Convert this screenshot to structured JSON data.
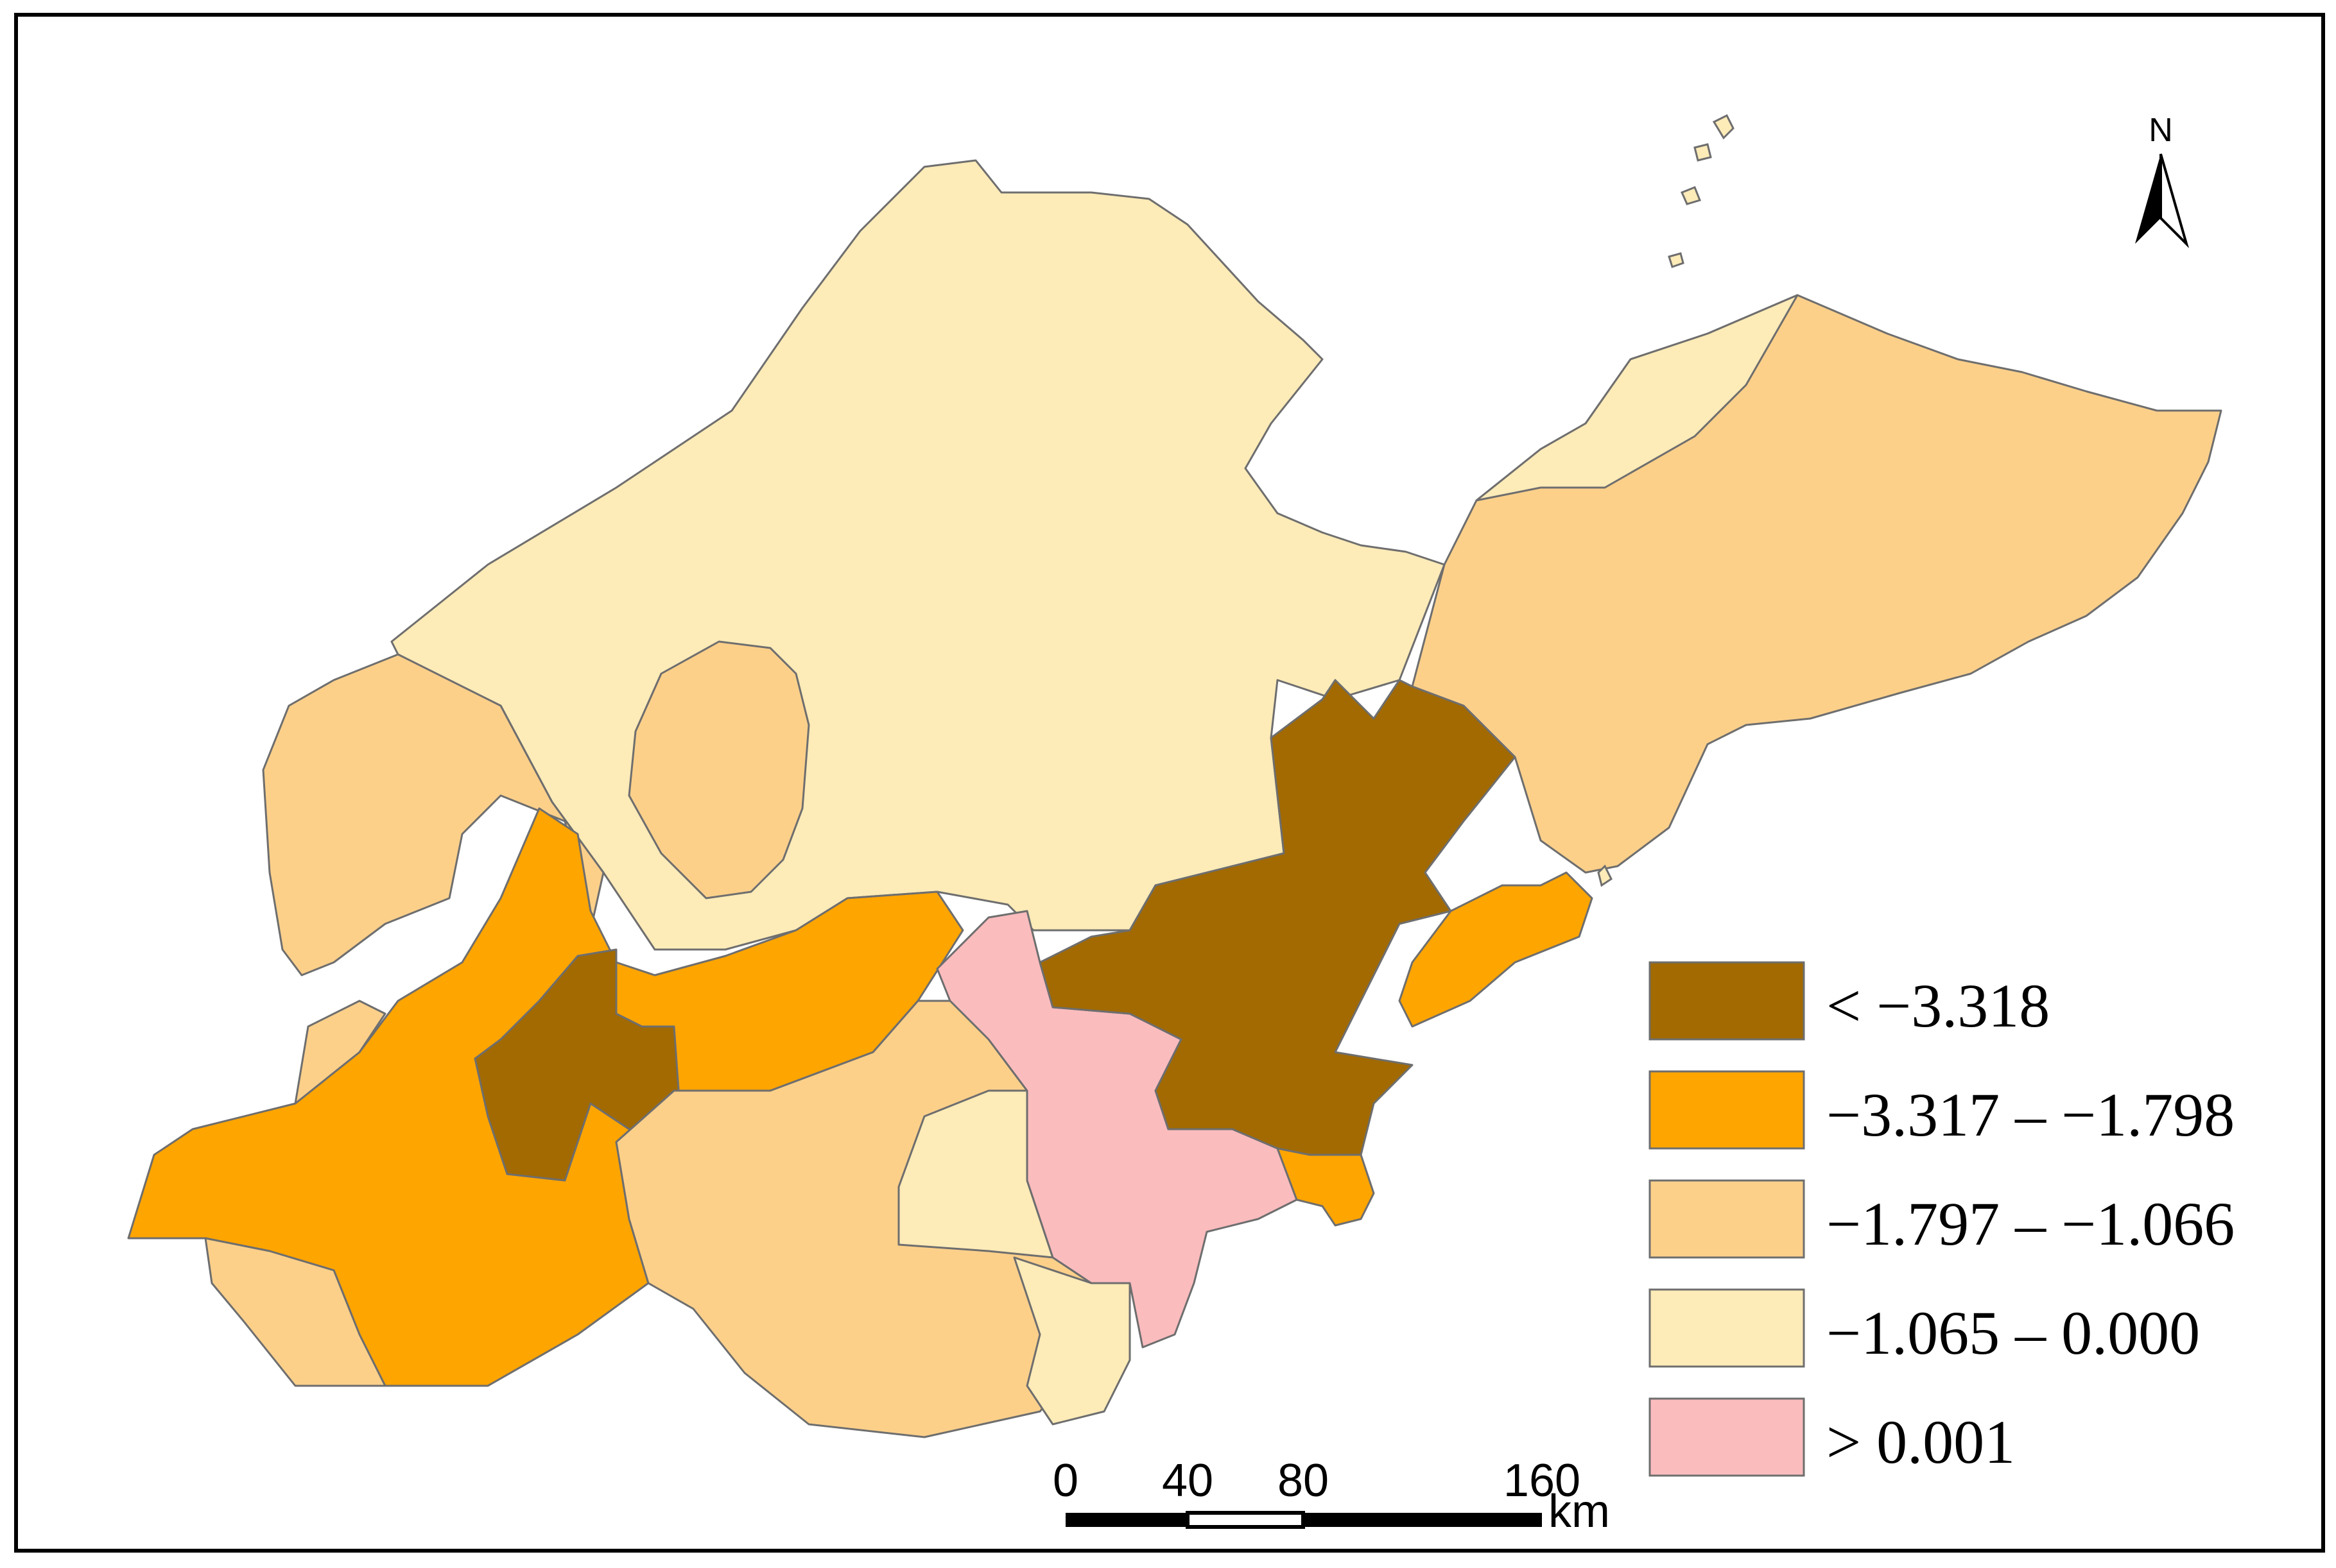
{
  "legend": {
    "classes": [
      {
        "label": "< −3.318",
        "color": "#a26a00"
      },
      {
        "label": "−3.317 – −1.798",
        "color": "#ffa500"
      },
      {
        "label": "−1.797 – −1.066",
        "color": "#fdd08a"
      },
      {
        "label": "−1.065 – 0.000",
        "color": "#fdebb8"
      },
      {
        "label": "> 0.001",
        "color": "#fbbcbe"
      }
    ]
  },
  "scale_bar": {
    "ticks": [
      "0",
      "40",
      "80",
      "160"
    ],
    "unit": "km"
  },
  "north_arrow": {
    "label": "N"
  },
  "colors": {
    "outline": "#6e6e6e",
    "frame": "#000000"
  }
}
